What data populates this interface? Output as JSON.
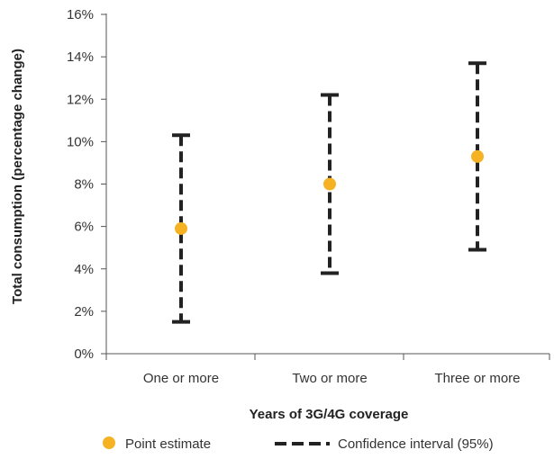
{
  "chart_data": {
    "type": "scatter",
    "title": "",
    "xlabel": "Years of 3G/4G coverage",
    "ylabel": "Total consumption (percentage change)",
    "categories": [
      "One or more",
      "Two or more",
      "Three or more"
    ],
    "point_estimate": [
      5.9,
      8.0,
      9.3
    ],
    "ci_lower": [
      1.5,
      3.8,
      4.9
    ],
    "ci_upper": [
      10.3,
      12.2,
      13.7
    ],
    "ylim": [
      0,
      16
    ],
    "yticks": [
      0,
      2,
      4,
      6,
      8,
      10,
      12,
      14,
      16
    ],
    "ytick_labels": [
      "0%",
      "2%",
      "4%",
      "6%",
      "8%",
      "10%",
      "12%",
      "14%",
      "16%"
    ],
    "grid": false,
    "legend_position": "bottom",
    "legend": {
      "point_label": "Point estimate",
      "ci_label": "Confidence interval (95%)"
    },
    "colors": {
      "point": "#F5B324",
      "ci": "#222222",
      "axis": "#555555"
    }
  }
}
